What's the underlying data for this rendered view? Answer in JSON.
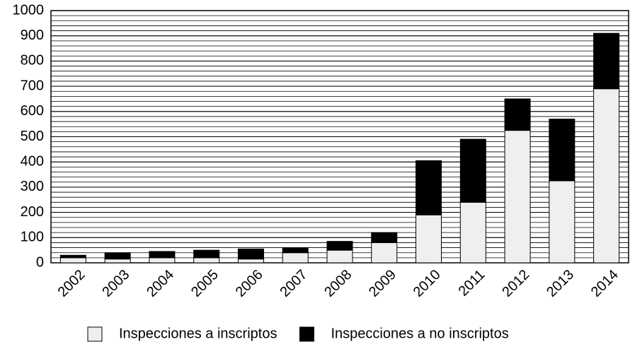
{
  "chart_data": {
    "type": "stacked_bar",
    "categories": [
      "2002",
      "2003",
      "2004",
      "2005",
      "2006",
      "2007",
      "2008",
      "2009",
      "2010",
      "2011",
      "2012",
      "2013",
      "2014"
    ],
    "series": [
      {
        "name": "Inspecciones a inscriptos",
        "color": "#efefef",
        "values": [
          20,
          15,
          20,
          20,
          15,
          40,
          50,
          80,
          190,
          240,
          525,
          325,
          690
        ]
      },
      {
        "name": "Inspecciones a no inscriptos",
        "color": "#000000",
        "values": [
          10,
          25,
          25,
          30,
          40,
          20,
          35,
          40,
          215,
          250,
          125,
          245,
          220
        ]
      }
    ],
    "ylim": [
      0,
      1000
    ],
    "yticks": [
      0,
      100,
      200,
      300,
      400,
      500,
      600,
      700,
      800,
      900,
      1000
    ],
    "grid": true,
    "minor_grid_step": 20,
    "legend": "bottom"
  }
}
